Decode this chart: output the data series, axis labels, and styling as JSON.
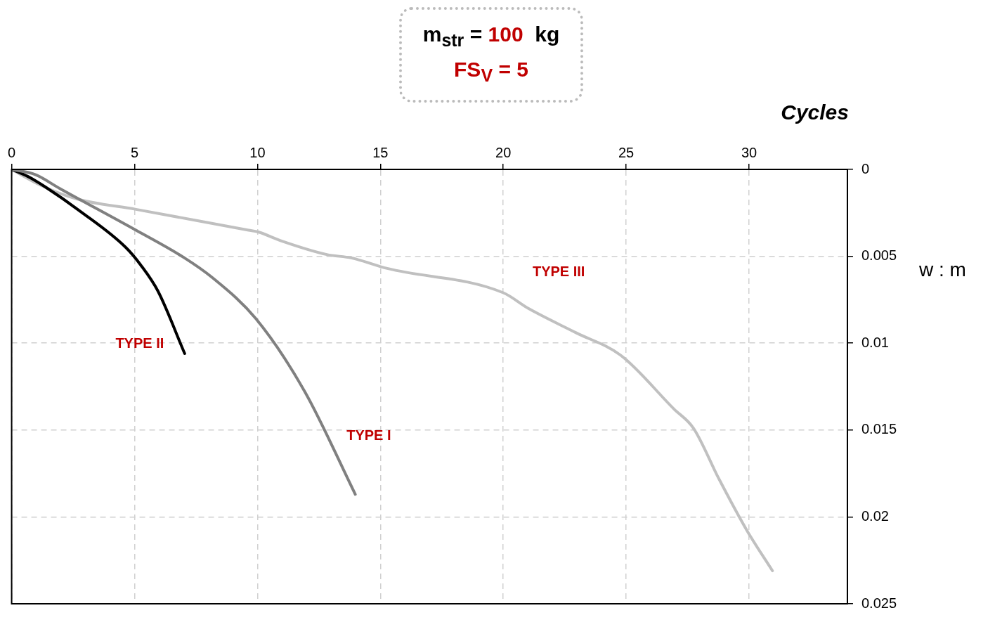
{
  "chart_data": {
    "type": "line",
    "title": "m$_{str}$ = 100  kg",
    "subtitle": "FS$_{V}$ = 5",
    "xlabel": "Cycles",
    "ylabel": "w : m",
    "xlim": [
      0,
      34
    ],
    "xticks": [
      0,
      5,
      10,
      15,
      20,
      25,
      30
    ],
    "ylim": [
      0.025,
      0
    ],
    "yticks": [
      0,
      0.005,
      0.01,
      0.015,
      0.02,
      0.025
    ],
    "grid": true,
    "legend": false,
    "marker": "none",
    "line_style": "solid",
    "series": [
      {
        "name": "TYPE I",
        "color": "#808080",
        "x": [
          0,
          0.96,
          1.96,
          5.06,
          7.04,
          8.14,
          9.94,
          11.93,
          13.98
        ],
        "values": [
          0,
          0.0003,
          0.0011,
          0.0035,
          0.0051,
          0.0062,
          0.0086,
          0.0128,
          0.0187
        ]
      },
      {
        "name": "TYPE II",
        "color": "#000000",
        "x": [
          0,
          0.65,
          1.36,
          2.78,
          4.65,
          5.25,
          5.95,
          7.04
        ],
        "values": [
          0,
          0.0004,
          0.001,
          0.0024,
          0.0045,
          0.0055,
          0.007,
          0.0106
        ]
      },
      {
        "name": "TYPE III",
        "color": "#c0c0c0",
        "x": [
          0,
          1.16,
          2.65,
          5.06,
          9.64,
          10.03,
          10.94,
          12.82,
          13.83,
          15.28,
          20,
          21.02,
          22.96,
          24.78,
          26.95,
          27.74,
          28.77,
          29.92,
          30.95
        ],
        "values": [
          0,
          0.0009,
          0.0017,
          0.0023,
          0.0035,
          0.0036,
          0.0041,
          0.0049,
          0.0051,
          0.0057,
          0.0071,
          0.008,
          0.0094,
          0.0107,
          0.0138,
          0.0149,
          0.0178,
          0.0208,
          0.0231
        ]
      }
    ]
  }
}
